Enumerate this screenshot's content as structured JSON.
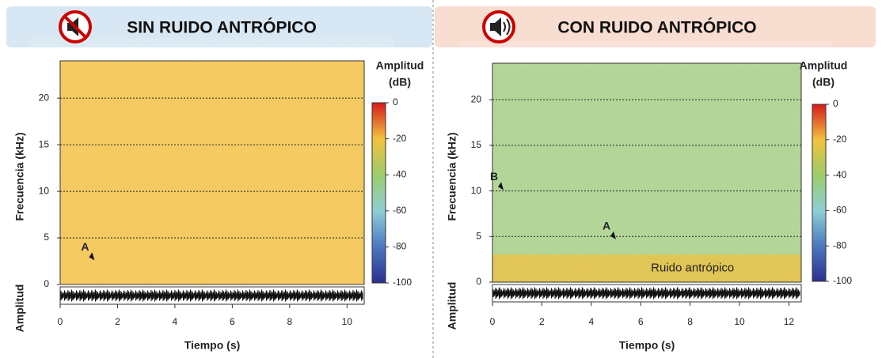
{
  "chart_data": [
    {
      "type": "spectrogram",
      "title": "SIN RUIDO ANTRÓPICO",
      "header_color": "#d7e7f3",
      "xlabel": "Tiempo (s)",
      "ylabel": "Frecuencia (kHz)",
      "amplitude_label": "Amplitud",
      "colorbar_title": [
        "Amplitud",
        "(dB)"
      ],
      "xlim": [
        0,
        10.6
      ],
      "xticks": [
        0,
        2,
        4,
        6,
        8,
        10
      ],
      "ylim": [
        0,
        24
      ],
      "yticks": [
        0,
        5,
        10,
        15,
        20
      ],
      "clim": [
        -100,
        0
      ],
      "cticks": [
        0,
        -20,
        -40,
        -60,
        -80,
        -100
      ],
      "background_color": "#f3c24a",
      "grid": true,
      "annotations": [
        {
          "text": "A",
          "x": 1.2,
          "y": 2.6
        }
      ]
    },
    {
      "type": "spectrogram",
      "title": "CON RUIDO ANTRÓPICO",
      "header_color": "#f8ddd1",
      "xlabel": "Tiempo (s)",
      "ylabel": "Frecuencia (kHz)",
      "amplitude_label": "Amplitud",
      "colorbar_title": [
        "Amplitud",
        "(dB)"
      ],
      "xlim": [
        0,
        12.5
      ],
      "xticks": [
        0,
        2,
        4,
        6,
        8,
        10,
        12
      ],
      "ylim": [
        0,
        24
      ],
      "yticks": [
        0,
        5,
        10,
        15,
        20
      ],
      "clim": [
        -100,
        0
      ],
      "cticks": [
        0,
        -20,
        -40,
        -60,
        -80,
        -100
      ],
      "background_color": "#a9cf8a",
      "grid": true,
      "annotations": [
        {
          "text": "B",
          "x": 0.45,
          "y": 10.1
        },
        {
          "text": "A",
          "x": 5.0,
          "y": 4.7
        },
        {
          "text": "Ruido antrópico",
          "x": 8.1,
          "y": 1.5
        }
      ]
    }
  ]
}
